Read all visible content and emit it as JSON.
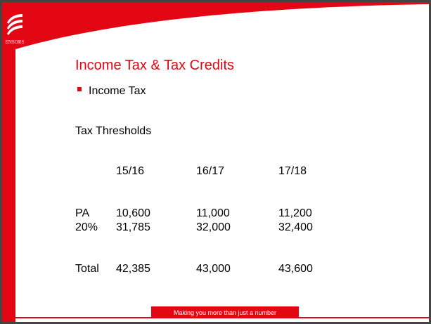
{
  "logo": "ENSORS",
  "title": "Income Tax & Tax Credits",
  "bullet": "Income Tax",
  "subtitle": "Tax Thresholds",
  "table": {
    "columns": [
      "15/16",
      "16/17",
      "17/18"
    ],
    "rows": [
      {
        "label": "PA",
        "values": [
          "10,600",
          "11,000",
          "11,200"
        ]
      },
      {
        "label": "20%",
        "values": [
          "31,785",
          "32,000",
          "32,400"
        ]
      },
      {
        "label": "Total",
        "values": [
          "42,385",
          "43,000",
          "43,600"
        ]
      }
    ]
  },
  "footer": "Making you more than just a number"
}
